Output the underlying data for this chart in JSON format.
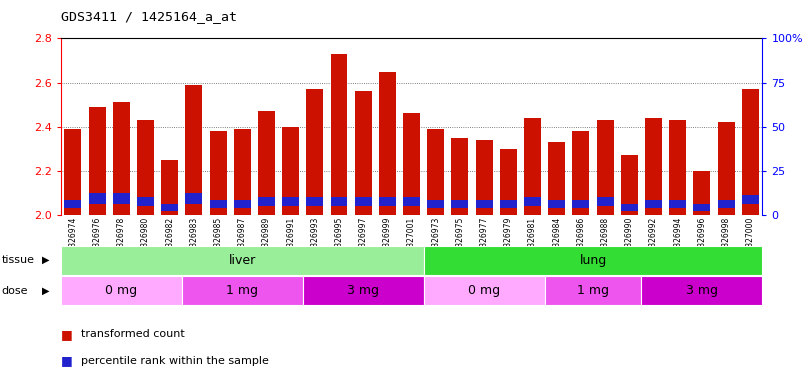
{
  "title": "GDS3411 / 1425164_a_at",
  "samples": [
    "GSM326974",
    "GSM326976",
    "GSM326978",
    "GSM326980",
    "GSM326982",
    "GSM326983",
    "GSM326985",
    "GSM326987",
    "GSM326989",
    "GSM326991",
    "GSM326993",
    "GSM326995",
    "GSM326997",
    "GSM326999",
    "GSM327001",
    "GSM326973",
    "GSM326975",
    "GSM326977",
    "GSM326979",
    "GSM326981",
    "GSM326984",
    "GSM326986",
    "GSM326988",
    "GSM326990",
    "GSM326992",
    "GSM326994",
    "GSM326996",
    "GSM326998",
    "GSM327000"
  ],
  "transformed_count": [
    2.39,
    2.49,
    2.51,
    2.43,
    2.25,
    2.59,
    2.38,
    2.39,
    2.47,
    2.4,
    2.57,
    2.73,
    2.56,
    2.65,
    2.46,
    2.39,
    2.35,
    2.34,
    2.3,
    2.44,
    2.33,
    2.38,
    2.43,
    2.27,
    2.44,
    2.43,
    2.2,
    2.42,
    2.57
  ],
  "blue_bottom": [
    2.03,
    2.05,
    2.05,
    2.04,
    2.02,
    2.05,
    2.03,
    2.03,
    2.04,
    2.04,
    2.04,
    2.04,
    2.04,
    2.04,
    2.04,
    2.03,
    2.03,
    2.03,
    2.03,
    2.04,
    2.03,
    2.03,
    2.04,
    2.02,
    2.03,
    2.03,
    2.02,
    2.03,
    2.05
  ],
  "blue_height": [
    0.04,
    0.05,
    0.05,
    0.04,
    0.03,
    0.05,
    0.04,
    0.04,
    0.04,
    0.04,
    0.04,
    0.04,
    0.04,
    0.04,
    0.04,
    0.04,
    0.04,
    0.04,
    0.04,
    0.04,
    0.04,
    0.04,
    0.04,
    0.03,
    0.04,
    0.04,
    0.03,
    0.04,
    0.04
  ],
  "tissue_groups": [
    {
      "label": "liver",
      "start": 0,
      "end": 14,
      "color": "#99EE99"
    },
    {
      "label": "lung",
      "start": 15,
      "end": 28,
      "color": "#33DD33"
    }
  ],
  "dose_groups": [
    {
      "label": "0 mg",
      "start": 0,
      "end": 4,
      "color": "#FFAAFF"
    },
    {
      "label": "1 mg",
      "start": 5,
      "end": 9,
      "color": "#EE55EE"
    },
    {
      "label": "3 mg",
      "start": 10,
      "end": 14,
      "color": "#CC00CC"
    },
    {
      "label": "0 mg",
      "start": 15,
      "end": 19,
      "color": "#FFAAFF"
    },
    {
      "label": "1 mg",
      "start": 20,
      "end": 23,
      "color": "#EE55EE"
    },
    {
      "label": "3 mg",
      "start": 24,
      "end": 28,
      "color": "#CC00CC"
    }
  ],
  "bar_color": "#CC1100",
  "blue_color": "#2222CC",
  "ymin": 2.0,
  "ymax": 2.8,
  "yticks_left": [
    2.0,
    2.2,
    2.4,
    2.6,
    2.8
  ],
  "yticks_right": [
    0,
    25,
    50,
    75,
    100
  ],
  "grid_levels": [
    2.2,
    2.4,
    2.6
  ]
}
